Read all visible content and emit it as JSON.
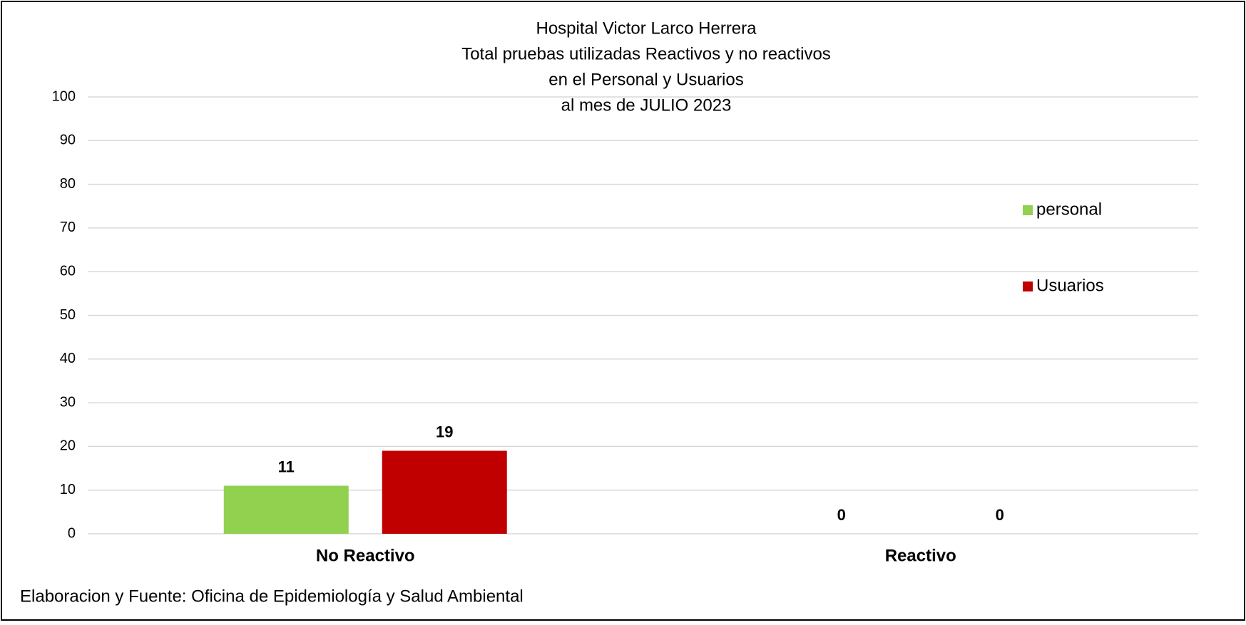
{
  "chart_data": {
    "type": "bar",
    "title": [
      "Hospital Victor Larco Herrera",
      "Total pruebas utilizadas Reactivos y no reactivos",
      "en el Personal y Usuarios",
      "al mes de JULIO 2023"
    ],
    "categories": [
      "No Reactivo",
      "Reactivo"
    ],
    "series": [
      {
        "name": "personal",
        "color": "#92d050",
        "values": [
          11,
          0
        ]
      },
      {
        "name": "Usuarios",
        "color": "#c00000",
        "values": [
          19,
          0
        ]
      }
    ],
    "ylim": [
      0,
      100
    ],
    "yticks": [
      0,
      10,
      20,
      30,
      40,
      50,
      60,
      70,
      80,
      90,
      100
    ],
    "grid": true,
    "legend": "right",
    "source": "Elaboracion y Fuente: Oficina de Epidemiología y Salud Ambiental"
  }
}
